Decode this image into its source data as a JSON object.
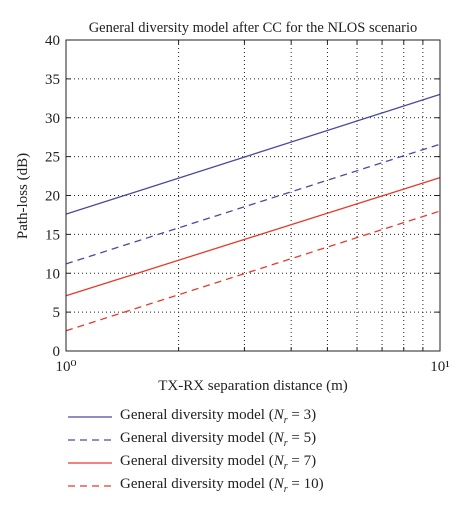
{
  "chart_data": {
    "type": "line",
    "title": "General diversity model after CC for the NLOS scenario",
    "xlabel": "TX-RX separation distance (m)",
    "ylabel": "Path-loss (dB)",
    "xscale": "log",
    "xlim": [
      1,
      10
    ],
    "ylim": [
      0,
      40
    ],
    "x_ticks": [
      "10⁰",
      "10¹"
    ],
    "y_ticks": [
      0,
      5,
      10,
      15,
      20,
      25,
      30,
      35,
      40
    ],
    "grid": true,
    "legend_position": "bottom",
    "x": [
      1,
      10
    ],
    "series": [
      {
        "name": "General diversity model (N_r = 3)",
        "legend_prefix": "General diversity model (",
        "legend_value": "= 3)",
        "values": [
          17.6,
          33.0
        ],
        "color": "#4a4a9e",
        "dash": "solid"
      },
      {
        "name": "General diversity model (N_r = 5)",
        "legend_prefix": "General diversity model (",
        "legend_value": "= 5)",
        "values": [
          11.2,
          26.6
        ],
        "color": "#4a4a9e",
        "dash": "dashed"
      },
      {
        "name": "General diversity model (N_r = 7)",
        "legend_prefix": "General diversity model (",
        "legend_value": "= 7)",
        "values": [
          7.1,
          22.3
        ],
        "color": "#e8392b",
        "dash": "solid"
      },
      {
        "name": "General diversity model (N_r = 10)",
        "legend_prefix": "General diversity model (",
        "legend_value": "= 10)",
        "values": [
          2.6,
          18.0
        ],
        "color": "#e8392b",
        "dash": "dashed"
      }
    ]
  }
}
